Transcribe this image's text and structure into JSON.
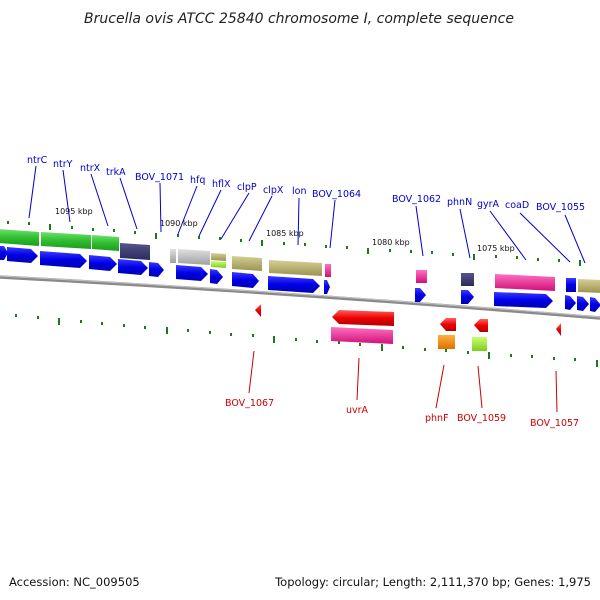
{
  "title": "Brucella ovis ATCC 25840 chromosome I, complete sequence",
  "footer": {
    "accession": "Accession: NC_009505",
    "topology": "Topology: circular; Length: 2,111,370 bp; Genes: 1,975"
  },
  "colors": {
    "label_top": "#0000cc",
    "label_bottom": "#cc0000",
    "backbone": "#808080",
    "tick": "#1a7a1a"
  },
  "scale_labels": [
    "1095 kbp",
    "1090 kbp",
    "1085 kbp",
    "1080 kbp",
    "1075 kbp"
  ],
  "top_labels": [
    "ntrC",
    "ntrY",
    "ntrX",
    "trkA",
    "BOV_1071",
    "hfq",
    "hflX",
    "clpP",
    "clpX",
    "lon",
    "BOV_1064",
    "BOV_1062",
    "phnN",
    "gyrA",
    "coaD",
    "BOV_1055"
  ],
  "bottom_labels": [
    "BOV_1067",
    "uvrA",
    "phnF",
    "BOV_1059",
    "BOV_1057"
  ]
}
